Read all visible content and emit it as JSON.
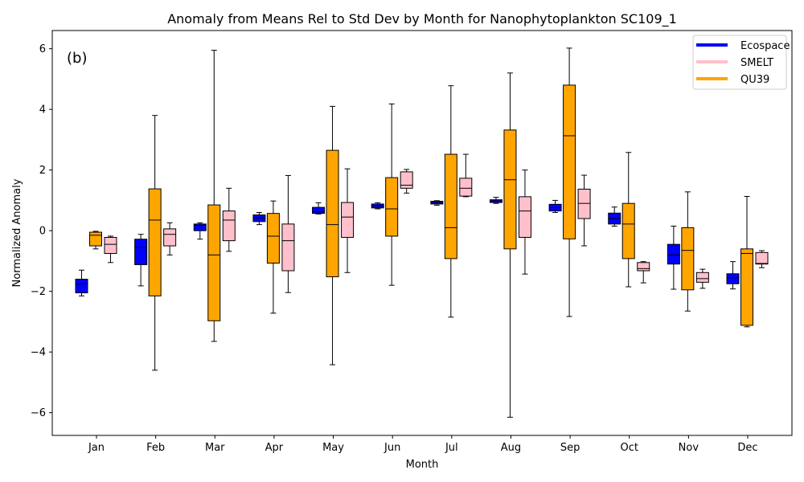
{
  "chart_data": {
    "type": "box",
    "title": "Anomaly from Means Rel to Std Dev by Month for Nanophytoplankton SC109_1",
    "panel_label": "(b)",
    "xlabel": "Month",
    "ylabel": "Normalized Anomaly",
    "categories": [
      "Jan",
      "Feb",
      "Mar",
      "Apr",
      "May",
      "Jun",
      "Jul",
      "Aug",
      "Sep",
      "Oct",
      "Nov",
      "Dec"
    ],
    "ylim": [
      -6.75,
      6.6
    ],
    "yticks": [
      -6,
      -4,
      -2,
      0,
      2,
      4,
      6
    ],
    "ytick_labels": [
      "−6",
      "−4",
      "−2",
      "0",
      "2",
      "4",
      "6"
    ],
    "grid": false,
    "legend_position": "top-right",
    "series": [
      {
        "name": "Ecospace",
        "color": "#0000ff",
        "boxes": [
          {
            "whislo": -2.15,
            "q1": -2.05,
            "median": -1.75,
            "q3": -1.6,
            "whishi": -1.3
          },
          {
            "whislo": -1.82,
            "q1": -1.12,
            "median": -0.55,
            "q3": -0.28,
            "whishi": -0.12
          },
          {
            "whislo": -0.28,
            "q1": 0.0,
            "median": 0.18,
            "q3": 0.22,
            "whishi": 0.26
          },
          {
            "whislo": 0.2,
            "q1": 0.3,
            "median": 0.42,
            "q3": 0.52,
            "whishi": 0.6
          },
          {
            "whislo": 0.55,
            "q1": 0.57,
            "median": 0.62,
            "q3": 0.77,
            "whishi": 0.92
          },
          {
            "whislo": 0.72,
            "q1": 0.75,
            "median": 0.82,
            "q3": 0.88,
            "whishi": 0.92
          },
          {
            "whislo": 0.84,
            "q1": 0.88,
            "median": 0.93,
            "q3": 0.97,
            "whishi": 0.99
          },
          {
            "whislo": 0.9,
            "q1": 0.93,
            "median": 0.98,
            "q3": 1.02,
            "whishi": 1.1
          },
          {
            "whislo": 0.6,
            "q1": 0.65,
            "median": 0.76,
            "q3": 0.87,
            "whishi": 1.0
          },
          {
            "whislo": 0.15,
            "q1": 0.22,
            "median": 0.4,
            "q3": 0.58,
            "whishi": 0.78
          },
          {
            "whislo": -1.93,
            "q1": -1.1,
            "median": -0.8,
            "q3": -0.45,
            "whishi": 0.15
          },
          {
            "whislo": -1.92,
            "q1": -1.75,
            "median": -1.55,
            "q3": -1.42,
            "whishi": -1.02
          }
        ]
      },
      {
        "name": "SMELT",
        "color": "#ffc0cb",
        "boxes": [
          {
            "whislo": -1.05,
            "q1": -0.75,
            "median": -0.45,
            "q3": -0.22,
            "whishi": -0.18
          },
          {
            "whislo": -0.8,
            "q1": -0.5,
            "median": -0.12,
            "q3": 0.06,
            "whishi": 0.26
          },
          {
            "whislo": -0.68,
            "q1": -0.33,
            "median": 0.35,
            "q3": 0.65,
            "whishi": 1.4
          },
          {
            "whislo": -2.04,
            "q1": -1.32,
            "median": -0.33,
            "q3": 0.22,
            "whishi": 1.82
          },
          {
            "whislo": -1.38,
            "q1": -0.22,
            "median": 0.45,
            "q3": 0.93,
            "whishi": 2.04
          },
          {
            "whislo": 1.24,
            "q1": 1.4,
            "median": 1.5,
            "q3": 1.94,
            "whishi": 2.02
          },
          {
            "whislo": 1.12,
            "q1": 1.14,
            "median": 1.4,
            "q3": 1.73,
            "whishi": 2.52
          },
          {
            "whislo": -1.43,
            "q1": -0.22,
            "median": 0.65,
            "q3": 1.12,
            "whishi": 2.0
          },
          {
            "whislo": -0.5,
            "q1": 0.4,
            "median": 0.9,
            "q3": 1.37,
            "whishi": 1.83
          },
          {
            "whislo": -1.72,
            "q1": -1.32,
            "median": -1.25,
            "q3": -1.05,
            "whishi": -1.02
          },
          {
            "whislo": -1.9,
            "q1": -1.7,
            "median": -1.58,
            "q3": -1.38,
            "whishi": -1.27
          },
          {
            "whislo": -1.22,
            "q1": -1.1,
            "median": -1.08,
            "q3": -0.72,
            "whishi": -0.66
          }
        ]
      },
      {
        "name": "QU39",
        "color": "#ffa500",
        "boxes": [
          {
            "whislo": -0.6,
            "q1": -0.5,
            "median": -0.15,
            "q3": -0.05,
            "whishi": -0.02
          },
          {
            "whislo": -4.6,
            "q1": -2.15,
            "median": 0.35,
            "q3": 1.38,
            "whishi": 3.8
          },
          {
            "whislo": -3.65,
            "q1": -2.97,
            "median": -0.8,
            "q3": 0.85,
            "whishi": 5.95
          },
          {
            "whislo": -2.72,
            "q1": -1.07,
            "median": -0.18,
            "q3": 0.57,
            "whishi": 0.98
          },
          {
            "whislo": -4.42,
            "q1": -1.52,
            "median": 0.2,
            "q3": 2.65,
            "whishi": 4.1
          },
          {
            "whislo": -1.8,
            "q1": -0.18,
            "median": 0.72,
            "q3": 1.75,
            "whishi": 4.18
          },
          {
            "whislo": -2.85,
            "q1": -0.92,
            "median": 0.1,
            "q3": 2.52,
            "whishi": 4.78
          },
          {
            "whislo": -6.15,
            "q1": -0.6,
            "median": 1.68,
            "q3": 3.32,
            "whishi": 5.2
          },
          {
            "whislo": -2.83,
            "q1": -0.27,
            "median": 3.13,
            "q3": 4.8,
            "whishi": 6.02
          },
          {
            "whislo": -1.85,
            "q1": -0.92,
            "median": 0.22,
            "q3": 0.9,
            "whishi": 2.58
          },
          {
            "whislo": -2.65,
            "q1": -1.95,
            "median": -0.65,
            "q3": 0.1,
            "whishi": 1.28
          },
          {
            "whislo": -3.17,
            "q1": -3.12,
            "median": -0.75,
            "q3": -0.6,
            "whishi": 1.13
          }
        ]
      }
    ]
  }
}
